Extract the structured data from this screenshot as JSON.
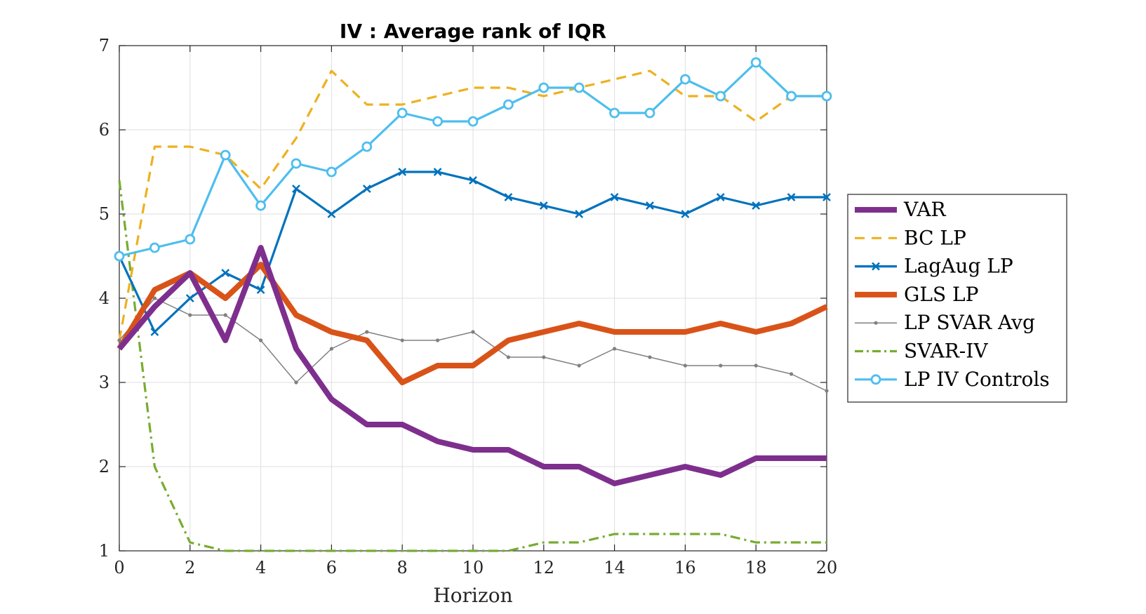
{
  "chart_data": {
    "type": "line",
    "title": "IV : Average rank of IQR",
    "xlabel": "Horizon",
    "ylabel": "",
    "xlim": [
      0,
      20
    ],
    "ylim": [
      1,
      7
    ],
    "xticks": [
      0,
      2,
      4,
      6,
      8,
      10,
      12,
      14,
      16,
      18,
      20
    ],
    "yticks": [
      1,
      2,
      3,
      4,
      5,
      6,
      7
    ],
    "grid": true,
    "legend_position": "right",
    "x": [
      0,
      1,
      2,
      3,
      4,
      5,
      6,
      7,
      8,
      9,
      10,
      11,
      12,
      13,
      14,
      15,
      16,
      17,
      18,
      19,
      20
    ],
    "series": [
      {
        "name": "VAR",
        "color": "#7E2F8E",
        "style": "solid",
        "width": "thick",
        "marker": "none",
        "values": [
          3.4,
          3.9,
          4.3,
          3.5,
          4.6,
          3.4,
          2.8,
          2.5,
          2.5,
          2.3,
          2.2,
          2.2,
          2.0,
          2.0,
          1.8,
          1.9,
          2.0,
          1.9,
          2.1,
          2.1,
          2.1
        ]
      },
      {
        "name": "BC LP",
        "color": "#EDB120",
        "style": "dashed",
        "width": "medium",
        "marker": "none",
        "values": [
          3.5,
          5.8,
          5.8,
          5.7,
          5.3,
          5.9,
          6.7,
          6.3,
          6.3,
          6.4,
          6.5,
          6.5,
          6.4,
          6.5,
          6.6,
          6.7,
          6.4,
          6.4,
          6.1,
          6.4,
          6.4
        ]
      },
      {
        "name": "LagAug LP",
        "color": "#0072BD",
        "style": "solid",
        "width": "medium",
        "marker": "x",
        "values": [
          4.5,
          3.6,
          4.0,
          4.3,
          4.1,
          5.3,
          5.0,
          5.3,
          5.5,
          5.5,
          5.4,
          5.2,
          5.1,
          5.0,
          5.2,
          5.1,
          5.0,
          5.2,
          5.1,
          5.2,
          5.2
        ]
      },
      {
        "name": "GLS LP",
        "color": "#D95319",
        "style": "solid",
        "width": "thick",
        "marker": "none",
        "values": [
          3.4,
          4.1,
          4.3,
          4.0,
          4.4,
          3.8,
          3.6,
          3.5,
          3.0,
          3.2,
          3.2,
          3.5,
          3.6,
          3.7,
          3.6,
          3.6,
          3.6,
          3.7,
          3.6,
          3.7,
          3.9
        ]
      },
      {
        "name": "LP SVAR Avg",
        "color": "#808080",
        "style": "solid",
        "width": "thin",
        "marker": "dot",
        "values": [
          3.5,
          4.0,
          3.8,
          3.8,
          3.5,
          3.0,
          3.4,
          3.6,
          3.5,
          3.5,
          3.6,
          3.3,
          3.3,
          3.2,
          3.4,
          3.3,
          3.2,
          3.2,
          3.2,
          3.1,
          2.9
        ]
      },
      {
        "name": "SVAR-IV",
        "color": "#77AC30",
        "style": "dashdot",
        "width": "medium",
        "marker": "none",
        "values": [
          5.4,
          2.0,
          1.1,
          1.0,
          1.0,
          1.0,
          1.0,
          1.0,
          1.0,
          1.0,
          1.0,
          1.0,
          1.1,
          1.1,
          1.2,
          1.2,
          1.2,
          1.2,
          1.1,
          1.1,
          1.1
        ]
      },
      {
        "name": "LP IV Controls",
        "color": "#4DBEEE",
        "style": "solid",
        "width": "medium",
        "marker": "circle",
        "values": [
          4.5,
          4.6,
          4.7,
          5.7,
          5.1,
          5.6,
          5.5,
          5.8,
          6.2,
          6.1,
          6.1,
          6.3,
          6.5,
          6.5,
          6.2,
          6.2,
          6.6,
          6.4,
          6.8,
          6.4,
          6.4
        ]
      }
    ]
  }
}
